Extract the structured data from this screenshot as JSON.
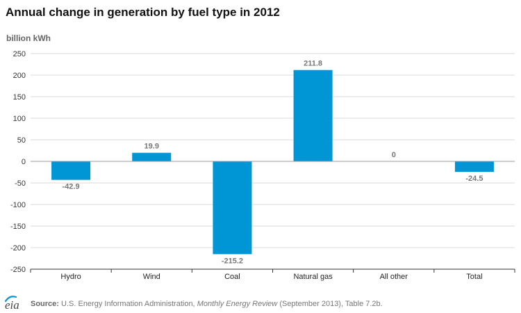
{
  "chart_data": {
    "type": "bar",
    "title": "Annual change in generation by fuel type in 2012",
    "ylabel": "billion kWh",
    "xlabel": "",
    "categories": [
      "Hydro",
      "Wind",
      "Coal",
      "Natural gas",
      "All other",
      "Total"
    ],
    "values": [
      -42.9,
      19.9,
      -215.2,
      211.8,
      0,
      -24.5
    ],
    "data_labels": [
      "-42.9",
      "19.9",
      "-215.2",
      "211.8",
      "0",
      "-24.5"
    ],
    "ylim": [
      -250,
      250
    ],
    "yticks": [
      250,
      200,
      150,
      100,
      50,
      0,
      -50,
      -100,
      -150,
      -200,
      -250
    ],
    "grid": true,
    "legend": "none",
    "bar_color": "#0096d6",
    "gridline_color": "#d9d9d9",
    "axis_color": "#333333",
    "label_color": "#777777"
  },
  "footer": {
    "logo_text": "eia",
    "source_label": "Source:",
    "source_text_1": "U.S. Energy Information Administration,",
    "source_text_italic": "Monthly Energy Review",
    "source_text_2": "(September 2013), Table 7.2b."
  }
}
